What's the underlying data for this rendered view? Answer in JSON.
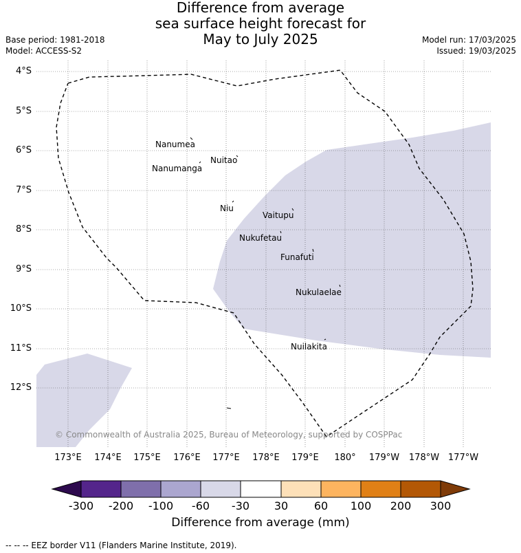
{
  "header": {
    "title_line1": "Difference from average",
    "title_line2": "sea surface height forecast for",
    "title_line3": "May to July 2025",
    "base_period": "Base period: 1981-2018",
    "model": "Model: ACCESS-S2",
    "model_run": "Model run: 17/03/2025",
    "issued": "Issued: 19/03/2025"
  },
  "map": {
    "lat_labels": [
      "4°S",
      "5°S",
      "6°S",
      "7°S",
      "8°S",
      "9°S",
      "10°S",
      "11°S",
      "12°S"
    ],
    "lon_labels": [
      "173°E",
      "174°E",
      "175°E",
      "176°E",
      "177°E",
      "178°E",
      "179°E",
      "180°",
      "179°W",
      "178°W",
      "177°W"
    ],
    "places": [
      "Nanumea",
      "Nuitao",
      "Nanumanga",
      "Niu",
      "Vaitupu",
      "Nukufetau",
      "Funafuti",
      "Nukulaelae",
      "Nuilakita"
    ],
    "anomaly_fill_color": "#d8d8e8",
    "anomaly_fill_category": "-60 to -30",
    "eez_line_style": "dashed",
    "copyright": "© Commonwealth of Australia 2025, Bureau of Meteorology, supported by COSPPac"
  },
  "colorbar": {
    "ticks": [
      "-300",
      "-200",
      "-100",
      "-60",
      "-30",
      "30",
      "60",
      "100",
      "200",
      "300"
    ],
    "colors": [
      "#2d0a4e",
      "#54258b",
      "#7f6fab",
      "#aba6cf",
      "#d8d8e8",
      "#ffffff",
      "#fde0b8",
      "#fdb45f",
      "#e08016",
      "#b35806",
      "#7f3b08"
    ],
    "label": "Difference from average (mm)"
  },
  "footer": {
    "eez_note": "--  --  -- EEZ border V11 (Flanders Marine Institute, 2019)."
  }
}
